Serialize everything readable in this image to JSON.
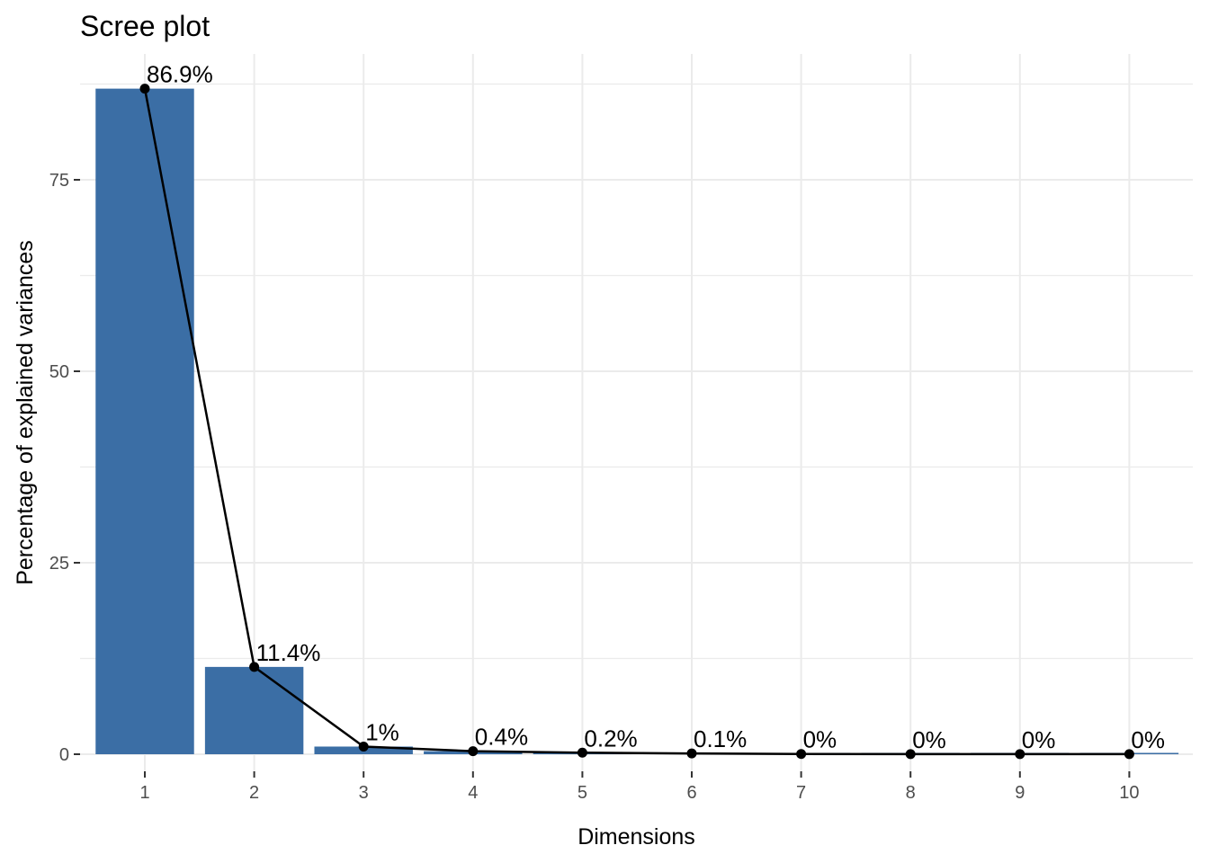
{
  "chart_data": {
    "type": "bar",
    "title": "Scree plot",
    "xlabel": "Dimensions",
    "ylabel": "Percentage of explained variances",
    "categories": [
      "1",
      "2",
      "3",
      "4",
      "5",
      "6",
      "7",
      "8",
      "9",
      "10"
    ],
    "values": [
      86.9,
      11.4,
      1.0,
      0.4,
      0.2,
      0.1,
      0.03,
      0.02,
      0.01,
      0.01
    ],
    "value_labels": [
      "86.9%",
      "11.4%",
      "1%",
      "0.4%",
      "0.2%",
      "0.1%",
      "0%",
      "0%",
      "0%",
      "0%"
    ],
    "yticks": [
      0,
      25,
      50,
      75
    ],
    "ylim": [
      0,
      90
    ],
    "grid": true,
    "line_overlay": true,
    "bar_color": "#3b6ea5",
    "line_color": "#000000"
  }
}
